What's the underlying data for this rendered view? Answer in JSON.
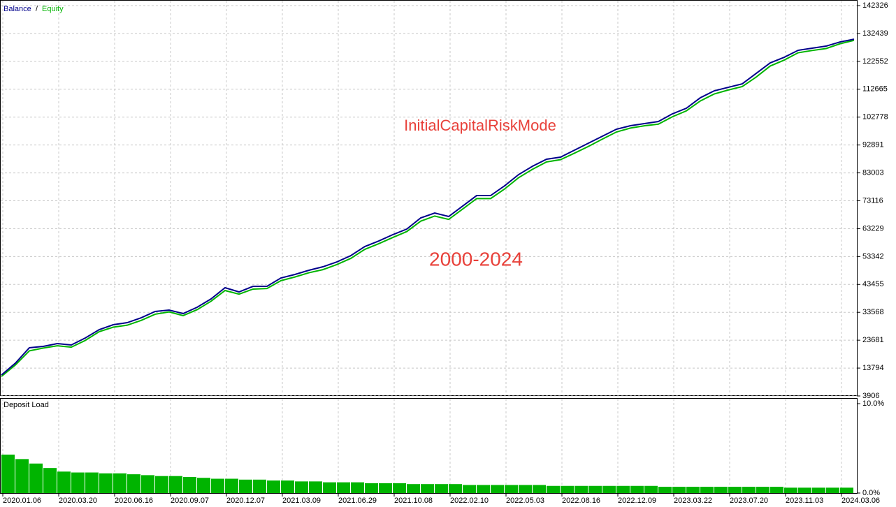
{
  "chart_data": [
    {
      "type": "line",
      "annotations": [
        "InitialCapitalRiskMode",
        "2000-2024"
      ],
      "x": [
        0,
        5,
        10,
        15,
        20,
        25,
        30,
        35,
        40,
        45,
        50,
        55,
        60,
        65,
        70,
        75,
        80,
        85,
        90,
        95,
        100,
        105,
        110,
        115,
        120,
        125,
        130,
        135,
        140,
        145,
        150,
        155,
        160,
        165,
        170,
        175,
        180,
        185,
        190,
        195,
        200,
        205,
        210,
        215,
        220,
        225,
        230,
        235,
        240,
        245,
        250,
        255,
        260,
        265,
        270,
        275,
        280,
        285,
        290,
        295,
        300,
        305
      ],
      "series": [
        {
          "name": "Balance",
          "color": "#00008b",
          "values": [
            11334,
            15543,
            20990,
            21486,
            22476,
            21981,
            24457,
            27428,
            29161,
            29904,
            31637,
            33866,
            34361,
            33123,
            35351,
            38322,
            42284,
            40798,
            42779,
            42779,
            45750,
            46988,
            48474,
            49712,
            51445,
            53674,
            56892,
            58873,
            61102,
            63082,
            67044,
            68777,
            67539,
            71253,
            74968,
            74968,
            78434,
            82396,
            85367,
            87843,
            88586,
            91062,
            93538,
            96013,
            98489,
            99727,
            100470,
            101213,
            103936,
            105917,
            109631,
            112107,
            113345,
            114583,
            118297,
            122011,
            123992,
            126468,
            127210,
            127953,
            129438,
            130429
          ]
        },
        {
          "name": "Equity",
          "color": "#00b400",
          "values": [
            10800,
            14900,
            19900,
            20900,
            21700,
            21200,
            23600,
            26700,
            28300,
            29000,
            30700,
            32900,
            33700,
            32400,
            34500,
            37500,
            41300,
            40000,
            41800,
            42000,
            44800,
            46100,
            47600,
            48700,
            50500,
            52700,
            55900,
            57900,
            60100,
            62200,
            65900,
            67700,
            66500,
            70200,
            73900,
            73900,
            77300,
            81300,
            84300,
            86900,
            87700,
            90000,
            92400,
            95000,
            97500,
            98900,
            99700,
            100300,
            102900,
            105000,
            108500,
            111000,
            112400,
            113600,
            117000,
            120900,
            123000,
            125600,
            126400,
            127100,
            128800,
            130000
          ]
        }
      ],
      "xlim": [
        0,
        305
      ],
      "xticks": [
        {
          "value": 0.5,
          "label": "2020.01.06"
        },
        {
          "value": 20.5,
          "label": "2020.03.20"
        },
        {
          "value": 40.5,
          "label": "2020.06.16"
        },
        {
          "value": 60.5,
          "label": "2020.09.07"
        },
        {
          "value": 80.5,
          "label": "2020.12.07"
        },
        {
          "value": 100.5,
          "label": "2021.03.09"
        },
        {
          "value": 120.5,
          "label": "2021.06.29"
        },
        {
          "value": 140.5,
          "label": "2021.10.08"
        },
        {
          "value": 160.5,
          "label": "2022.02.10"
        },
        {
          "value": 180.5,
          "label": "2022.05.03"
        },
        {
          "value": 200.5,
          "label": "2022.08.16"
        },
        {
          "value": 220.5,
          "label": "2022.12.09"
        },
        {
          "value": 240.5,
          "label": "2023.03.22"
        },
        {
          "value": 260.5,
          "label": "2023.07.20"
        },
        {
          "value": 280.5,
          "label": "2023.11.03"
        },
        {
          "value": 300.5,
          "label": "2024.03.06"
        }
      ],
      "ylim": [
        3906,
        142326
      ],
      "yticks": [
        3906,
        13794,
        23681,
        33568,
        43455,
        53342,
        63229,
        73116,
        83003,
        92891,
        102778,
        112665,
        122552,
        132439,
        142326
      ],
      "grid": true
    },
    {
      "type": "bar",
      "title": "Deposit Load",
      "color": "#00b400",
      "values": [
        4.3,
        3.8,
        3.3,
        2.8,
        2.4,
        2.3,
        2.3,
        2.2,
        2.2,
        2.1,
        2.0,
        1.9,
        1.9,
        1.8,
        1.7,
        1.6,
        1.6,
        1.5,
        1.5,
        1.4,
        1.4,
        1.3,
        1.3,
        1.2,
        1.2,
        1.2,
        1.1,
        1.1,
        1.1,
        1.0,
        1.0,
        1.0,
        1.0,
        0.9,
        0.9,
        0.9,
        0.9,
        0.9,
        0.9,
        0.8,
        0.8,
        0.8,
        0.8,
        0.8,
        0.8,
        0.8,
        0.8,
        0.7,
        0.7,
        0.7,
        0.7,
        0.7,
        0.7,
        0.7,
        0.7,
        0.7,
        0.6,
        0.6,
        0.6,
        0.6,
        0.6
      ],
      "ylim": [
        0,
        10
      ],
      "yticks": [
        {
          "value": 0,
          "label": "0.0%"
        },
        {
          "value": 10,
          "label": "10.0%"
        }
      ]
    }
  ]
}
